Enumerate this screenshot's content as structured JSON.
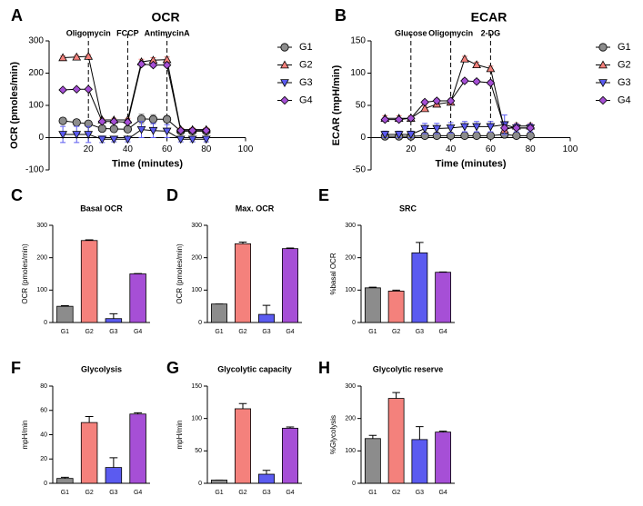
{
  "chart_data": [
    {
      "type": "line",
      "label": "A",
      "title": "OCR",
      "xlabel": "Time (minutes)",
      "ylabel": "OCR (pmoles/min)",
      "x": [
        7,
        14,
        20,
        27,
        33,
        40,
        47,
        53,
        60,
        67,
        73,
        80
      ],
      "xlim": [
        0,
        100
      ],
      "xticks": [
        20,
        40,
        60,
        80,
        100
      ],
      "ylim": [
        -100,
        300
      ],
      "yticks": [
        -100,
        0,
        100,
        200,
        300
      ],
      "annotations": [
        {
          "text": "Oligomycin",
          "x": 20
        },
        {
          "text": "FCCP",
          "x": 40
        },
        {
          "text": "AntimycinA",
          "x": 60
        }
      ],
      "series": [
        {
          "name": "G1",
          "color": "#8c8c8c",
          "marker": "circle",
          "values": [
            52,
            47,
            43,
            28,
            27,
            26,
            58,
            57,
            57,
            20,
            20,
            20
          ],
          "errors": [
            5,
            5,
            5,
            6,
            5,
            5,
            15,
            14,
            10,
            5,
            5,
            5
          ]
        },
        {
          "name": "G2",
          "color": "#f4817c",
          "marker": "triangle-up",
          "values": [
            248,
            250,
            252,
            55,
            55,
            55,
            235,
            240,
            242,
            25,
            25,
            25
          ],
          "errors": [
            5,
            5,
            5,
            5,
            5,
            5,
            8,
            8,
            8,
            5,
            5,
            5
          ]
        },
        {
          "name": "G3",
          "color": "#5b5bf0",
          "marker": "triangle-down",
          "values": [
            10,
            10,
            10,
            -5,
            -5,
            -5,
            25,
            22,
            20,
            -5,
            -5,
            -5
          ],
          "errors": [
            25,
            25,
            25,
            10,
            8,
            8,
            25,
            22,
            20,
            8,
            8,
            8
          ]
        },
        {
          "name": "G4",
          "color": "#a64fd6",
          "marker": "diamond",
          "values": [
            148,
            150,
            150,
            50,
            50,
            48,
            228,
            225,
            225,
            22,
            22,
            22
          ],
          "errors": [
            4,
            4,
            4,
            4,
            4,
            4,
            6,
            6,
            6,
            4,
            4,
            4
          ]
        }
      ]
    },
    {
      "type": "line",
      "label": "B",
      "title": "ECAR",
      "xlabel": "Time (minutes)",
      "ylabel": "ECAR (mpH/min)",
      "x": [
        7,
        14,
        20,
        27,
        33,
        40,
        47,
        53,
        60,
        67,
        73,
        80
      ],
      "xlim": [
        0,
        100
      ],
      "xticks": [
        20,
        40,
        60,
        80,
        100
      ],
      "ylim": [
        -50,
        150
      ],
      "yticks": [
        -50,
        0,
        50,
        100,
        150
      ],
      "annotations": [
        {
          "text": "Glucose",
          "x": 20
        },
        {
          "text": "Oligomycin",
          "x": 40
        },
        {
          "text": "2-DG",
          "x": 60
        }
      ],
      "series": [
        {
          "name": "G1",
          "color": "#8c8c8c",
          "marker": "circle",
          "values": [
            2,
            2,
            2,
            3,
            3,
            3,
            3,
            3,
            3,
            5,
            3,
            3
          ],
          "errors": [
            3,
            3,
            3,
            3,
            3,
            3,
            3,
            3,
            3,
            3,
            3,
            3
          ]
        },
        {
          "name": "G2",
          "color": "#f4817c",
          "marker": "triangle-up",
          "values": [
            30,
            30,
            30,
            45,
            52,
            55,
            122,
            113,
            107,
            12,
            18,
            18
          ],
          "errors": [
            4,
            4,
            4,
            4,
            4,
            4,
            4,
            4,
            4,
            4,
            4,
            4
          ]
        },
        {
          "name": "G3",
          "color": "#5b5bf0",
          "marker": "triangle-down",
          "values": [
            5,
            5,
            5,
            14,
            14,
            15,
            17,
            17,
            17,
            20,
            15,
            15
          ],
          "errors": [
            5,
            5,
            5,
            8,
            8,
            8,
            8,
            8,
            8,
            15,
            6,
            6
          ]
        },
        {
          "name": "G4",
          "color": "#a64fd6",
          "marker": "diamond",
          "values": [
            28,
            28,
            30,
            55,
            57,
            57,
            88,
            87,
            85,
            15,
            15,
            15
          ],
          "errors": [
            3,
            3,
            3,
            3,
            3,
            3,
            3,
            3,
            3,
            3,
            3,
            3
          ]
        }
      ]
    },
    {
      "type": "bar",
      "label": "C",
      "title": "Basal OCR",
      "ylabel": "OCR (pmoles/min)",
      "categories": [
        "G1",
        "G2",
        "G3",
        "G4"
      ],
      "values": [
        50,
        253,
        12,
        150
      ],
      "errors": [
        2,
        2,
        15,
        1
      ],
      "colors": [
        "#8c8c8c",
        "#f4817c",
        "#5b5bf0",
        "#a64fd6"
      ],
      "ylim": [
        0,
        300
      ],
      "yticks": [
        0,
        100,
        200,
        300
      ]
    },
    {
      "type": "bar",
      "label": "D",
      "title": "Max. OCR",
      "ylabel": "OCR (pmoles/min)",
      "categories": [
        "G1",
        "G2",
        "G3",
        "G4"
      ],
      "values": [
        57,
        243,
        25,
        228
      ],
      "errors": [
        0,
        5,
        28,
        2
      ],
      "colors": [
        "#8c8c8c",
        "#f4817c",
        "#5b5bf0",
        "#a64fd6"
      ],
      "ylim": [
        0,
        300
      ],
      "yticks": [
        0,
        100,
        200,
        300
      ]
    },
    {
      "type": "bar",
      "label": "E",
      "title": "SRC",
      "ylabel": "%basal OCR",
      "categories": [
        "G1",
        "G2",
        "G3",
        "G4"
      ],
      "values": [
        107,
        97,
        215,
        155
      ],
      "errors": [
        2,
        3,
        32,
        1
      ],
      "colors": [
        "#8c8c8c",
        "#f4817c",
        "#5b5bf0",
        "#a64fd6"
      ],
      "ylim": [
        0,
        300
      ],
      "yticks": [
        0,
        100,
        200,
        300
      ]
    },
    {
      "type": "bar",
      "label": "F",
      "title": "Glycolysis",
      "ylabel": "mpH/min",
      "categories": [
        "G1",
        "G2",
        "G3",
        "G4"
      ],
      "values": [
        4,
        50,
        13,
        57
      ],
      "errors": [
        1,
        5,
        8,
        1
      ],
      "colors": [
        "#8c8c8c",
        "#f4817c",
        "#5b5bf0",
        "#a64fd6"
      ],
      "ylim": [
        0,
        80
      ],
      "yticks": [
        0,
        20,
        40,
        60,
        80
      ]
    },
    {
      "type": "bar",
      "label": "G",
      "title": "Glycolytic capacity",
      "ylabel": "mpH/min",
      "categories": [
        "G1",
        "G2",
        "G3",
        "G4"
      ],
      "values": [
        5,
        115,
        14,
        85
      ],
      "errors": [
        0,
        8,
        6,
        2
      ],
      "colors": [
        "#8c8c8c",
        "#f4817c",
        "#5b5bf0",
        "#a64fd6"
      ],
      "ylim": [
        0,
        150
      ],
      "yticks": [
        0,
        50,
        100,
        150
      ]
    },
    {
      "type": "bar",
      "label": "H",
      "title": "Glycolytic reserve",
      "ylabel": "%Glycolysis",
      "categories": [
        "G1",
        "G2",
        "G3",
        "G4"
      ],
      "values": [
        138,
        262,
        135,
        158
      ],
      "errors": [
        10,
        18,
        40,
        3
      ],
      "colors": [
        "#8c8c8c",
        "#f4817c",
        "#5b5bf0",
        "#a64fd6"
      ],
      "ylim": [
        0,
        300
      ],
      "yticks": [
        0,
        100,
        200,
        300
      ]
    }
  ]
}
